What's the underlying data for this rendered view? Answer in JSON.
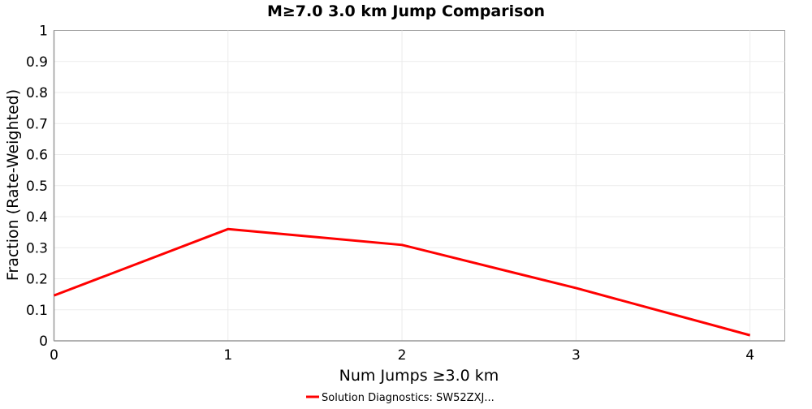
{
  "chart_data": {
    "type": "line",
    "title": "M≥7.0 3.0 km Jump Comparison",
    "xlabel": "Num Jumps ≥3.0 km",
    "ylabel": "Fraction (Rate-Weighted)",
    "xlim": [
      0,
      4.2
    ],
    "ylim": [
      0,
      1
    ],
    "xticks": [
      0,
      1,
      2,
      3,
      4
    ],
    "xtick_labels": [
      "0",
      "1",
      "2",
      "3",
      "4"
    ],
    "yticks": [
      0,
      0.1,
      0.2,
      0.3,
      0.4,
      0.5,
      0.6,
      0.7,
      0.8,
      0.9,
      1
    ],
    "ytick_labels": [
      "0",
      "0.1",
      "0.2",
      "0.3",
      "0.4",
      "0.5",
      "0.6",
      "0.7",
      "0.8",
      "0.9",
      "1"
    ],
    "grid": true,
    "legend_position": "bottom-center",
    "series": [
      {
        "name": "Solution Diagnostics: SW52ZXJ...",
        "color": "#ff0000",
        "x": [
          0,
          1,
          2,
          3,
          4
        ],
        "y": [
          0.146,
          0.36,
          0.309,
          0.17,
          0.018
        ]
      }
    ]
  }
}
